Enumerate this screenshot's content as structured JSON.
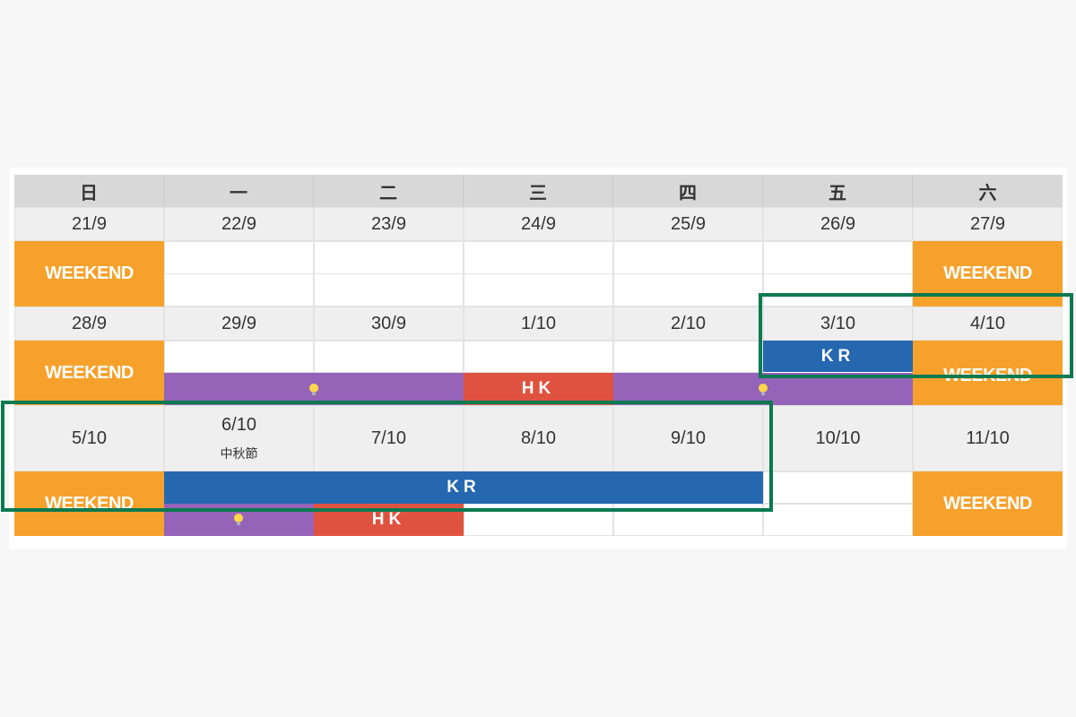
{
  "weekdays": [
    "日",
    "一",
    "二",
    "三",
    "四",
    "五",
    "六"
  ],
  "week1": {
    "dates": [
      "21/9",
      "22/9",
      "23/9",
      "24/9",
      "25/9",
      "26/9",
      "27/9"
    ],
    "weekend_label": "WEEKEND"
  },
  "week2": {
    "dates": [
      "28/9",
      "29/9",
      "30/9",
      "1/10",
      "2/10",
      "3/10",
      "4/10"
    ],
    "weekend_label": "WEEKEND",
    "events": {
      "kr_label": "KR",
      "hk_label": "HK"
    }
  },
  "week3": {
    "dates": [
      "5/10",
      "6/10",
      "7/10",
      "8/10",
      "9/10",
      "10/10",
      "11/10"
    ],
    "holiday": "中秋節",
    "weekend_label": "WEEKEND",
    "events": {
      "kr_label": "KR",
      "hk_label": "HK"
    }
  },
  "colors": {
    "weekend": "#f6a12b",
    "kr": "#2568b0",
    "hk": "#e05240",
    "purple": "#9563b8",
    "highlight": "#0a7a50",
    "header": "#d8d8d8"
  },
  "icons": [
    "lightbulb-icon"
  ]
}
